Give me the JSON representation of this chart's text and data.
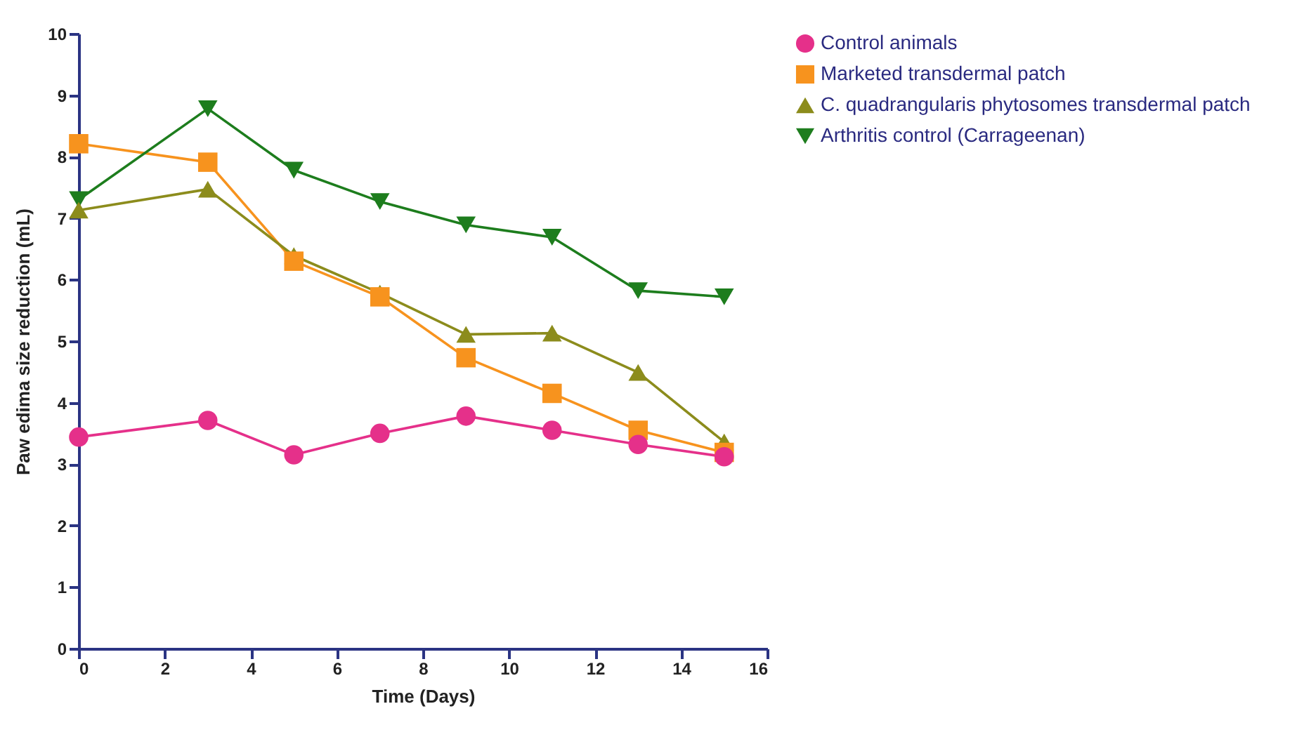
{
  "chart_data": {
    "type": "line",
    "xlabel": "Time (Days)",
    "ylabel": "Paw edima size reduction (mL)",
    "x": [
      0,
      3,
      5,
      7,
      9,
      11,
      13,
      15
    ],
    "series": [
      {
        "name": "Control animals",
        "color": "#e5308a",
        "marker": "circle",
        "values": [
          3.44,
          3.71,
          3.15,
          3.5,
          3.78,
          3.55,
          3.32,
          3.12
        ]
      },
      {
        "name": "Marketed transdermal patch",
        "color": "#f7931e",
        "marker": "square",
        "values": [
          8.21,
          7.91,
          6.3,
          5.72,
          4.73,
          4.15,
          3.55,
          3.19
        ]
      },
      {
        "name": "C. quadrangularis phytosomes transdermal patch",
        "color": "#8c8c1c",
        "marker": "triangle",
        "values": [
          7.13,
          7.47,
          6.39,
          5.78,
          5.11,
          5.13,
          4.49,
          3.36
        ]
      },
      {
        "name": "Arthritis control (Carrageenan)",
        "color": "#1d7d1d",
        "marker": "triangle-down",
        "values": [
          7.3,
          8.78,
          7.78,
          7.27,
          6.89,
          6.69,
          5.82,
          5.72
        ]
      }
    ],
    "xlim": [
      0,
      16
    ],
    "xticks": [
      0,
      2,
      4,
      6,
      8,
      10,
      12,
      14,
      16
    ],
    "ylim": [
      0,
      10
    ],
    "yticks": [
      0,
      1,
      2,
      3,
      4,
      5,
      6,
      7,
      8,
      9,
      10
    ],
    "grid": false,
    "legend": "right",
    "line_style": "solid"
  }
}
